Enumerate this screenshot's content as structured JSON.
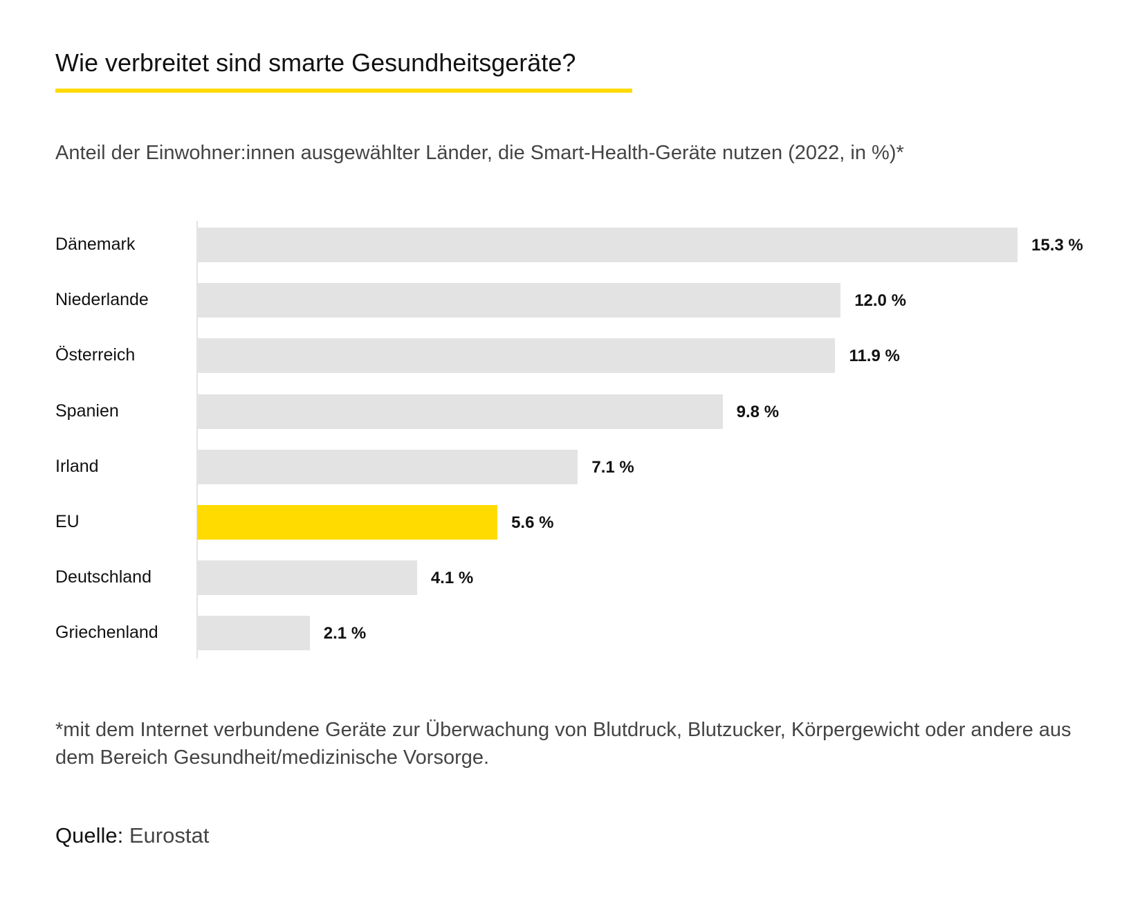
{
  "title": "Wie verbreitet sind smarte Gesundheitsgeräte?",
  "subtitle": "Anteil der Einwohner:innen ausgewählter Länder, die Smart-Health-Geräte nutzen (2022, in %)*",
  "footnote": "*mit dem Internet verbundene Geräte zur Überwachung von Blutdruck, Blutzucker, Körpergewicht oder andere aus dem Bereich Gesundheit/medizinische Vorsorge.",
  "source_label": "Quelle:",
  "source_value": "Eurostat",
  "colors": {
    "accent": "#FFDB00",
    "bar": "#E3E3E3"
  },
  "chart_data": {
    "type": "bar",
    "orientation": "horizontal",
    "title": "Wie verbreitet sind smarte Gesundheitsgeräte?",
    "xlabel": "",
    "ylabel": "",
    "xlim": [
      0,
      15.3
    ],
    "grid": false,
    "categories": [
      "Dänemark",
      "Niederlande",
      "Österreich",
      "Spanien",
      "Irland",
      "EU",
      "Deutschland",
      "Griechenland"
    ],
    "values": [
      15.3,
      12.0,
      11.9,
      9.8,
      7.1,
      5.6,
      4.1,
      2.1
    ],
    "labels": [
      "15.3 %",
      "12.0 %",
      "11.9 %",
      "9.8 %",
      "7.1 %",
      "5.6 %",
      "4.1 %",
      "2.1 %"
    ],
    "highlight": "EU"
  }
}
